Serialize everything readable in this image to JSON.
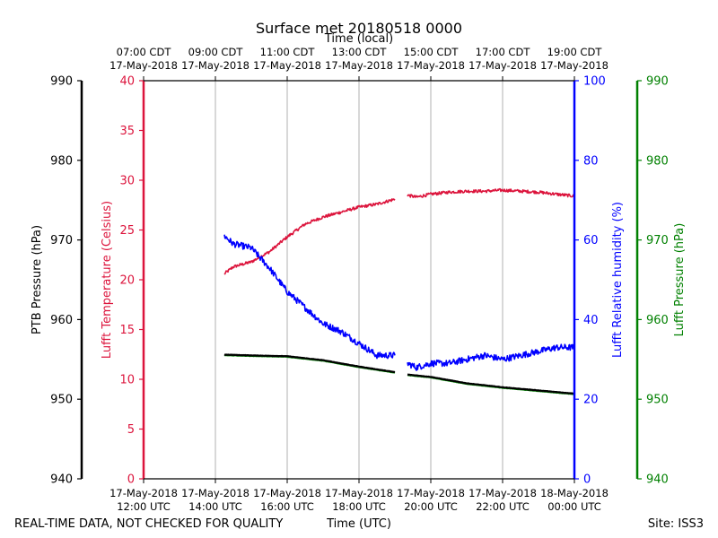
{
  "chart_data": {
    "type": "line",
    "title": "Surface met 20180518 0000",
    "top_axis_label": "Time (local)",
    "bottom_axis_label": "Time (UTC)",
    "footer_left": "REAL-TIME DATA, NOT CHECKED FOR QUALITY",
    "footer_right": "Site: ISS3",
    "x_range_hours_utc": [
      12,
      24
    ],
    "grid": "vertical",
    "bottom_ticks": [
      {
        "hour": 12,
        "line1": "17-May-2018",
        "line2": "12:00 UTC"
      },
      {
        "hour": 14,
        "line1": "17-May-2018",
        "line2": "14:00 UTC"
      },
      {
        "hour": 16,
        "line1": "17-May-2018",
        "line2": "16:00 UTC"
      },
      {
        "hour": 18,
        "line1": "17-May-2018",
        "line2": "18:00 UTC"
      },
      {
        "hour": 20,
        "line1": "17-May-2018",
        "line2": "20:00 UTC"
      },
      {
        "hour": 22,
        "line1": "17-May-2018",
        "line2": "22:00 UTC"
      },
      {
        "hour": 24,
        "line1": "18-May-2018",
        "line2": "00:00 UTC"
      }
    ],
    "top_ticks": [
      {
        "hour": 12,
        "line1": "07:00 CDT",
        "line2": "17-May-2018"
      },
      {
        "hour": 14,
        "line1": "09:00 CDT",
        "line2": "17-May-2018"
      },
      {
        "hour": 16,
        "line1": "11:00 CDT",
        "line2": "17-May-2018"
      },
      {
        "hour": 18,
        "line1": "13:00 CDT",
        "line2": "17-May-2018"
      },
      {
        "hour": 20,
        "line1": "15:00 CDT",
        "line2": "17-May-2018"
      },
      {
        "hour": 22,
        "line1": "17:00 CDT",
        "line2": "17-May-2018"
      },
      {
        "hour": 24,
        "line1": "19:00 CDT",
        "line2": "17-May-2018"
      }
    ],
    "axes": [
      {
        "id": "ptb",
        "label": "PTB Pressure (hPa)",
        "color": "#000000",
        "ylim": [
          940,
          990
        ],
        "ticks": [
          940,
          950,
          960,
          970,
          980,
          990
        ]
      },
      {
        "id": "temp",
        "label": "Lufft Temperature (Celsius)",
        "color": "#dc143c",
        "ylim": [
          0,
          40
        ],
        "ticks": [
          0,
          5,
          10,
          15,
          20,
          25,
          30,
          35,
          40
        ]
      },
      {
        "id": "rh",
        "label": "Lufft Relative humidity (%)",
        "color": "#0000ff",
        "ylim": [
          0,
          100
        ],
        "ticks": [
          0,
          20,
          40,
          60,
          80,
          100
        ]
      },
      {
        "id": "lp",
        "label": "Lufft Pressure (hPa)",
        "color": "#008000",
        "ylim": [
          940,
          990
        ],
        "ticks": [
          940,
          950,
          960,
          970,
          980,
          990
        ]
      }
    ],
    "series": [
      {
        "name": "Lufft Temperature",
        "axis": "temp",
        "color": "#dc143c",
        "noise": 0.15,
        "segments": [
          {
            "x": [
              14.25,
              14.5,
              15.0,
              15.5,
              16.0,
              16.5,
              17.0,
              17.5,
              18.0,
              18.5,
              19.0
            ],
            "y": [
              20.6,
              21.3,
              21.8,
              22.8,
              24.3,
              25.6,
              26.3,
              26.8,
              27.3,
              27.6,
              28.1
            ]
          },
          {
            "x": [
              19.35,
              19.6,
              20.0,
              20.5,
              21.0,
              21.5,
              22.0,
              22.5,
              23.0,
              23.5,
              24.0
            ],
            "y": [
              28.5,
              28.3,
              28.6,
              28.8,
              28.9,
              28.9,
              29.0,
              28.9,
              28.8,
              28.6,
              28.4
            ]
          }
        ]
      },
      {
        "name": "Lufft Relative humidity",
        "axis": "rh",
        "color": "#0000ff",
        "noise": 0.8,
        "segments": [
          {
            "x": [
              14.25,
              14.5,
              15.0,
              15.5,
              16.0,
              16.5,
              17.0,
              17.5,
              18.0,
              18.5,
              19.0
            ],
            "y": [
              61,
              59,
              58,
              53,
              47,
              43,
              39,
              37,
              34,
              31,
              31
            ]
          },
          {
            "x": [
              19.35,
              19.6,
              20.0,
              20.5,
              21.0,
              21.5,
              22.0,
              22.5,
              23.0,
              23.5,
              24.0
            ],
            "y": [
              29,
              28,
              29,
              29,
              30,
              31,
              30,
              31,
              32,
              33,
              33
            ]
          }
        ]
      },
      {
        "name": "Lufft Pressure",
        "axis": "lp",
        "color": "#008000",
        "noise": 0.02,
        "segments": [
          {
            "x": [
              14.25,
              15.0,
              16.0,
              17.0,
              18.0,
              19.0
            ],
            "y": [
              955.5,
              955.4,
              955.3,
              954.8,
              954.0,
              953.3
            ]
          },
          {
            "x": [
              19.35,
              20.0,
              21.0,
              22.0,
              23.0,
              24.0
            ],
            "y": [
              953.0,
              952.7,
              951.9,
              951.4,
              951.0,
              950.6
            ]
          }
        ]
      },
      {
        "name": "PTB Pressure",
        "axis": "ptb",
        "color": "#000000",
        "noise": 0.02,
        "segments": [
          {
            "x": [
              14.25,
              15.0,
              16.0,
              17.0,
              18.0,
              19.0
            ],
            "y": [
              955.6,
              955.5,
              955.4,
              954.9,
              954.1,
              953.4
            ]
          },
          {
            "x": [
              19.35,
              20.0,
              21.0,
              22.0,
              23.0,
              24.0
            ],
            "y": [
              953.1,
              952.8,
              952.0,
              951.5,
              951.1,
              950.7
            ]
          }
        ]
      }
    ]
  }
}
